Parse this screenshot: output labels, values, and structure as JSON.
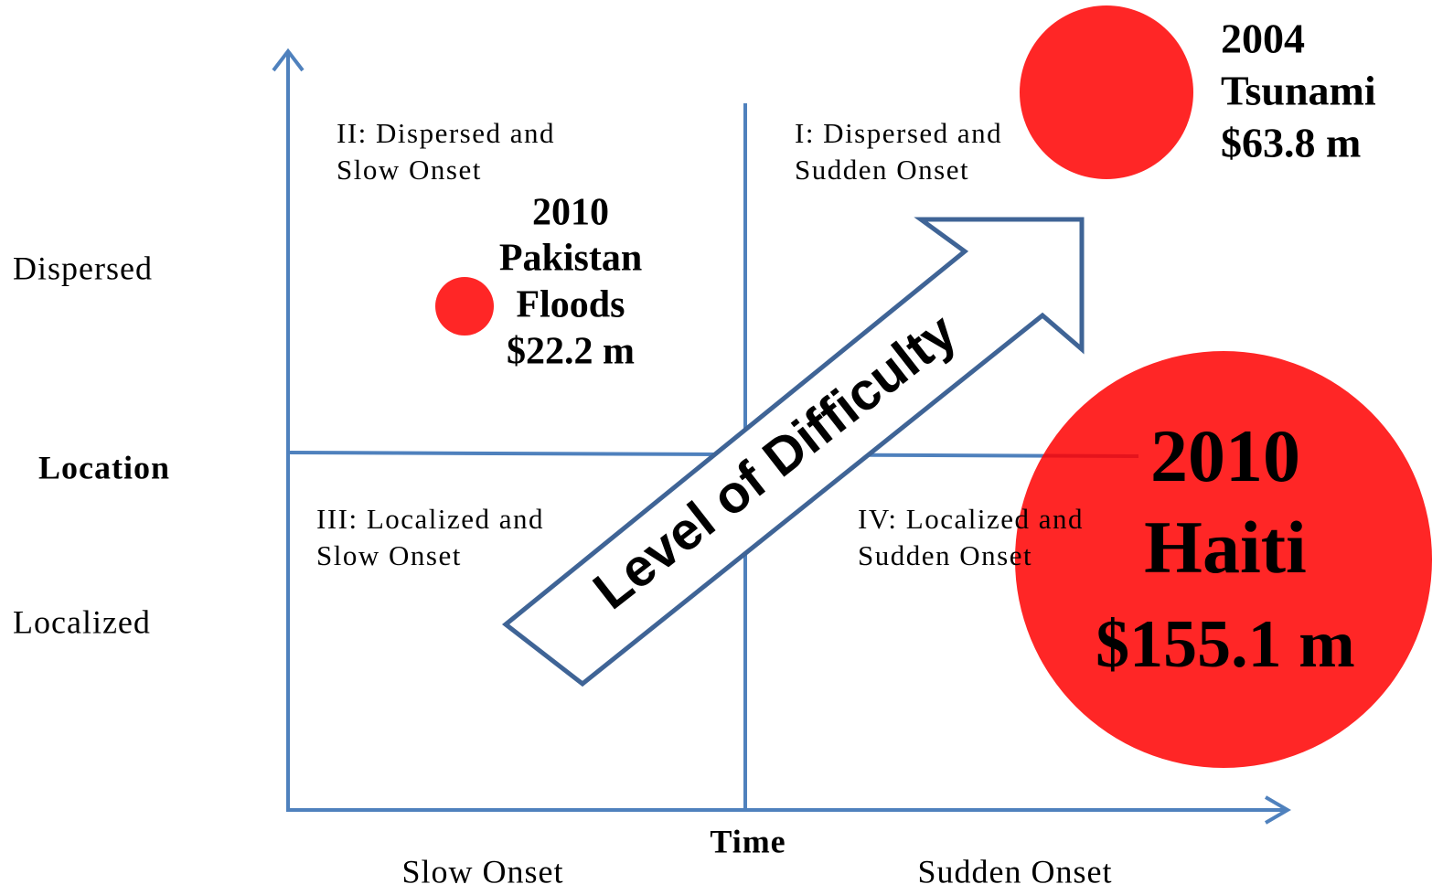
{
  "axes": {
    "y_top": "Dispersed",
    "y_title": "Location",
    "y_bottom": "Localized",
    "x_title": "Time",
    "x_left": "Slow Onset",
    "x_right": "Sudden Onset"
  },
  "quadrants": [
    {
      "lines": [
        "II: Dispersed and",
        "Slow Onset"
      ]
    },
    {
      "lines": [
        "I: Dispersed and",
        "Sudden Onset"
      ]
    },
    {
      "lines": [
        "III: Localized and",
        "Slow Onset"
      ]
    },
    {
      "lines": [
        "IV: Localized and",
        "Sudden Onset"
      ]
    }
  ],
  "arrow": {
    "label": "Level of Difficulty"
  },
  "bubbles": [
    {
      "lines": [
        "2010",
        "Pakistan",
        "Floods",
        "$22.2 m"
      ]
    },
    {
      "lines": [
        "2004",
        "Tsunami",
        "$63.8 m"
      ]
    },
    {
      "lines": [
        "2010",
        "Haiti",
        "$155.1 m"
      ]
    }
  ]
}
